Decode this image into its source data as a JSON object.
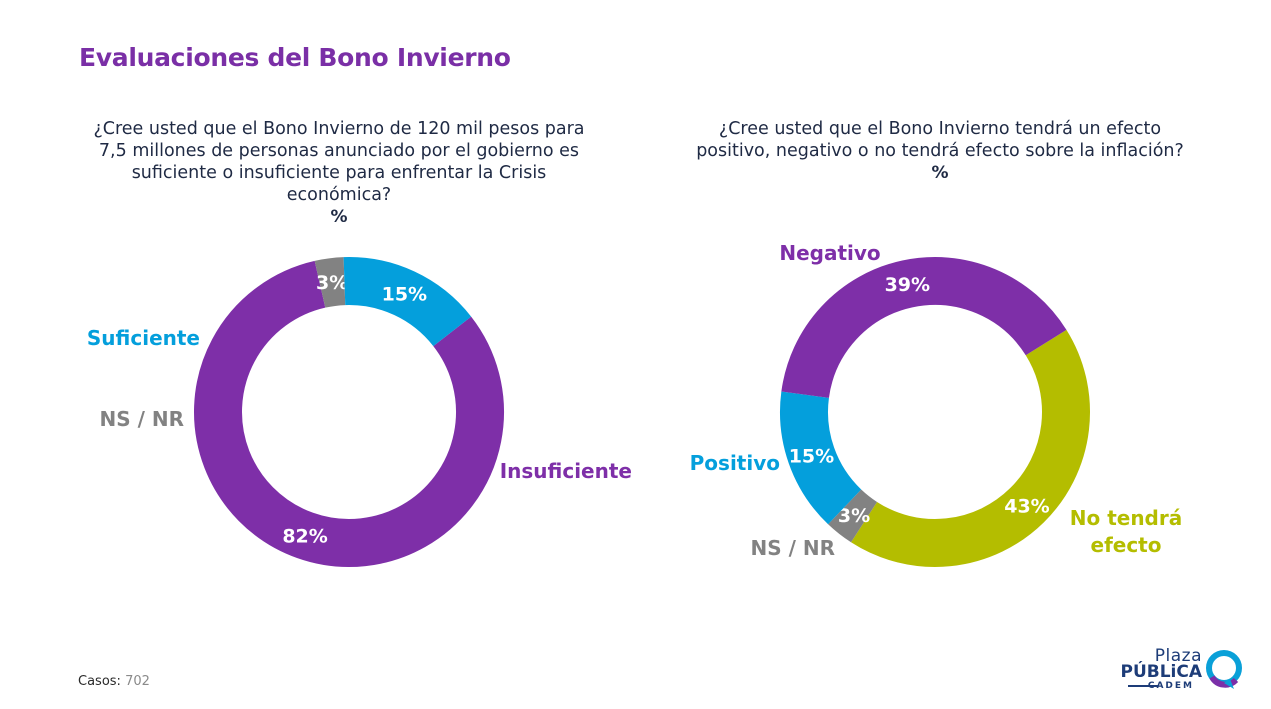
{
  "title": "Evaluaciones del Bono Invierno",
  "footnote": {
    "label": "Casos",
    "sep": ":",
    "value": "702"
  },
  "logo": {
    "plaza": "Plaza",
    "publica": "PÚBLiCA",
    "cadem": "CADEM"
  },
  "colors": {
    "title": "#7a2fa6",
    "purple": "#7e2fa8",
    "blue": "#049fdc",
    "gray": "#828282",
    "olive": "#b4bd00",
    "text": "#1f2a44"
  },
  "chart_data": [
    {
      "type": "pie",
      "title": "¿Cree usted que el Bono Invierno de 120 mil pesos para 7,5 millones de personas anunciado por el gobierno es suficiente o insuficiente para enfrentar la Crisis económica?",
      "unit": "%",
      "slices": [
        {
          "name": "Insuficiente",
          "value": 82,
          "label": "82%",
          "color": "#7e2fa8"
        },
        {
          "name": "NS / NR",
          "value": 3,
          "label": "3%",
          "color": "#828282"
        },
        {
          "name": "Suficiente",
          "value": 15,
          "label": "15%",
          "color": "#049fdc"
        }
      ]
    },
    {
      "type": "pie",
      "title": "¿Cree usted que el Bono Invierno tendrá un efecto positivo, negativo o no tendrá efecto sobre la inflación?",
      "unit": "%",
      "slices": [
        {
          "name": "No tendrá efecto",
          "value": 43,
          "label": "43%",
          "color": "#b4bd00"
        },
        {
          "name": "NS / NR",
          "value": 3,
          "label": "3%",
          "color": "#828282"
        },
        {
          "name": "Positivo",
          "value": 15,
          "label": "15%",
          "color": "#049fdc"
        },
        {
          "name": "Negativo",
          "value": 39,
          "label": "39%",
          "color": "#7e2fa8"
        }
      ]
    }
  ]
}
